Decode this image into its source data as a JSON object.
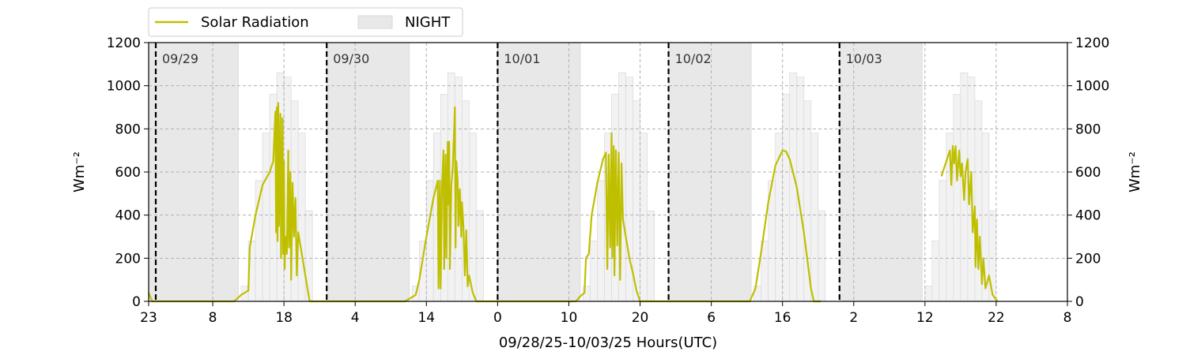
{
  "chart_data": {
    "type": "line",
    "xlabel": "09/28/25-10/03/25  Hours(UTC)",
    "ylabel_left": "Wm⁻²",
    "ylabel_right": "Wm⁻²",
    "ylim": [
      0,
      1200
    ],
    "yticks": [
      0,
      200,
      400,
      600,
      800,
      1000,
      1200
    ],
    "x_unit": "hours since 09/28 00:00 UTC",
    "xlim": [
      23,
      152
    ],
    "xticks": [
      {
        "x": 23,
        "label": "23"
      },
      {
        "x": 32,
        "label": "8"
      },
      {
        "x": 42,
        "label": "18"
      },
      {
        "x": 52,
        "label": "4"
      },
      {
        "x": 62,
        "label": "14"
      },
      {
        "x": 72,
        "label": "0"
      },
      {
        "x": 82,
        "label": "10"
      },
      {
        "x": 92,
        "label": "20"
      },
      {
        "x": 102,
        "label": "6"
      },
      {
        "x": 112,
        "label": "16"
      },
      {
        "x": 122,
        "label": "2"
      },
      {
        "x": 132,
        "label": "12"
      },
      {
        "x": 142,
        "label": "22"
      },
      {
        "x": 152,
        "label": "8"
      }
    ],
    "grid": true,
    "legend": {
      "placement": "top-left, above plot",
      "entries": [
        {
          "label": "Solar Radiation",
          "kind": "line",
          "color": "#bfbf00"
        },
        {
          "label": "NIGHT",
          "kind": "patch",
          "color": "#e8e8e8"
        }
      ]
    },
    "day_markers": [
      {
        "x": 24,
        "label": "09/29"
      },
      {
        "x": 48,
        "label": "09/30"
      },
      {
        "x": 72,
        "label": "10/01"
      },
      {
        "x": 96,
        "label": "10/02"
      },
      {
        "x": 120,
        "label": "10/03"
      }
    ],
    "night_spans": [
      [
        23,
        35.6
      ],
      [
        48,
        59.6
      ],
      [
        72,
        83.6
      ],
      [
        96,
        107.6
      ],
      [
        120,
        131.6
      ]
    ],
    "clear_sky_envelope": [
      {
        "x": 35.6,
        "y": 0
      },
      {
        "x": 36.0,
        "y": 70
      },
      {
        "x": 37.0,
        "y": 280
      },
      {
        "x": 38.0,
        "y": 560
      },
      {
        "x": 39.0,
        "y": 780
      },
      {
        "x": 40.0,
        "y": 960
      },
      {
        "x": 41.0,
        "y": 1060
      },
      {
        "x": 42.0,
        "y": 1040
      },
      {
        "x": 43.0,
        "y": 930
      },
      {
        "x": 44.0,
        "y": 780
      },
      {
        "x": 45.0,
        "y": 420
      },
      {
        "x": 46.0,
        "y": 0
      },
      {
        "x": 59.6,
        "y": 0
      },
      {
        "x": 60.0,
        "y": 70
      },
      {
        "x": 61.0,
        "y": 280
      },
      {
        "x": 62.0,
        "y": 560
      },
      {
        "x": 63.0,
        "y": 780
      },
      {
        "x": 64.0,
        "y": 960
      },
      {
        "x": 65.0,
        "y": 1060
      },
      {
        "x": 66.0,
        "y": 1040
      },
      {
        "x": 67.0,
        "y": 930
      },
      {
        "x": 68.0,
        "y": 780
      },
      {
        "x": 69.0,
        "y": 420
      },
      {
        "x": 70.0,
        "y": 0
      },
      {
        "x": 83.6,
        "y": 0
      },
      {
        "x": 84.0,
        "y": 70
      },
      {
        "x": 85.0,
        "y": 280
      },
      {
        "x": 86.0,
        "y": 560
      },
      {
        "x": 87.0,
        "y": 780
      },
      {
        "x": 88.0,
        "y": 960
      },
      {
        "x": 89.0,
        "y": 1060
      },
      {
        "x": 90.0,
        "y": 1040
      },
      {
        "x": 91.0,
        "y": 930
      },
      {
        "x": 92.0,
        "y": 780
      },
      {
        "x": 93.0,
        "y": 420
      },
      {
        "x": 94.0,
        "y": 0
      },
      {
        "x": 107.6,
        "y": 0
      },
      {
        "x": 108.0,
        "y": 70
      },
      {
        "x": 109.0,
        "y": 280
      },
      {
        "x": 110.0,
        "y": 560
      },
      {
        "x": 111.0,
        "y": 780
      },
      {
        "x": 112.0,
        "y": 960
      },
      {
        "x": 113.0,
        "y": 1060
      },
      {
        "x": 114.0,
        "y": 1040
      },
      {
        "x": 115.0,
        "y": 930
      },
      {
        "x": 116.0,
        "y": 780
      },
      {
        "x": 117.0,
        "y": 420
      },
      {
        "x": 118.0,
        "y": 0
      },
      {
        "x": 131.6,
        "y": 0
      },
      {
        "x": 132.0,
        "y": 70
      },
      {
        "x": 133.0,
        "y": 280
      },
      {
        "x": 134.0,
        "y": 560
      },
      {
        "x": 135.0,
        "y": 780
      },
      {
        "x": 136.0,
        "y": 960
      },
      {
        "x": 137.0,
        "y": 1060
      },
      {
        "x": 138.0,
        "y": 1040
      },
      {
        "x": 139.0,
        "y": 930
      },
      {
        "x": 140.0,
        "y": 780
      },
      {
        "x": 141.0,
        "y": 420
      },
      {
        "x": 142.0,
        "y": 0
      }
    ],
    "series": [
      {
        "name": "Solar Radiation",
        "color": "#bfbf00",
        "segments": [
          [
            {
              "x": 23.0,
              "y": 40
            },
            {
              "x": 23.5,
              "y": 0
            },
            {
              "x": 35.0,
              "y": 0
            },
            {
              "x": 36.0,
              "y": 30
            },
            {
              "x": 37.0,
              "y": 50
            },
            {
              "x": 37.2,
              "y": 250
            },
            {
              "x": 38.0,
              "y": 400
            },
            {
              "x": 39.0,
              "y": 540
            },
            {
              "x": 40.0,
              "y": 600
            },
            {
              "x": 40.5,
              "y": 650
            },
            {
              "x": 40.8,
              "y": 880
            },
            {
              "x": 40.9,
              "y": 320
            },
            {
              "x": 41.0,
              "y": 900
            },
            {
              "x": 41.1,
              "y": 280
            },
            {
              "x": 41.2,
              "y": 920
            },
            {
              "x": 41.3,
              "y": 350
            },
            {
              "x": 41.5,
              "y": 870
            },
            {
              "x": 41.6,
              "y": 200
            },
            {
              "x": 41.8,
              "y": 850
            },
            {
              "x": 41.9,
              "y": 220
            },
            {
              "x": 42.0,
              "y": 650
            },
            {
              "x": 42.1,
              "y": 150
            },
            {
              "x": 42.2,
              "y": 300
            },
            {
              "x": 42.4,
              "y": 220
            },
            {
              "x": 42.6,
              "y": 700
            },
            {
              "x": 42.7,
              "y": 250
            },
            {
              "x": 42.9,
              "y": 600
            },
            {
              "x": 43.0,
              "y": 100
            },
            {
              "x": 43.2,
              "y": 550
            },
            {
              "x": 43.4,
              "y": 300
            },
            {
              "x": 43.6,
              "y": 480
            },
            {
              "x": 43.8,
              "y": 120
            },
            {
              "x": 44.0,
              "y": 320
            },
            {
              "x": 44.5,
              "y": 220
            },
            {
              "x": 45.0,
              "y": 120
            },
            {
              "x": 45.6,
              "y": 0
            }
          ],
          [
            {
              "x": 45.6,
              "y": 0
            },
            {
              "x": 59.0,
              "y": 0
            },
            {
              "x": 60.5,
              "y": 30
            },
            {
              "x": 61.0,
              "y": 100
            },
            {
              "x": 62.0,
              "y": 300
            },
            {
              "x": 63.0,
              "y": 480
            },
            {
              "x": 63.6,
              "y": 560
            },
            {
              "x": 63.7,
              "y": 60
            },
            {
              "x": 63.9,
              "y": 560
            },
            {
              "x": 64.0,
              "y": 60
            },
            {
              "x": 64.2,
              "y": 540
            },
            {
              "x": 64.4,
              "y": 700
            },
            {
              "x": 64.5,
              "y": 150
            },
            {
              "x": 64.7,
              "y": 680
            },
            {
              "x": 64.8,
              "y": 200
            },
            {
              "x": 65.0,
              "y": 740
            },
            {
              "x": 65.1,
              "y": 450
            },
            {
              "x": 65.2,
              "y": 740
            },
            {
              "x": 65.3,
              "y": 150
            },
            {
              "x": 65.5,
              "y": 540
            },
            {
              "x": 65.7,
              "y": 620
            },
            {
              "x": 65.9,
              "y": 800
            },
            {
              "x": 66.0,
              "y": 900
            },
            {
              "x": 66.1,
              "y": 250
            },
            {
              "x": 66.2,
              "y": 650
            },
            {
              "x": 66.4,
              "y": 560
            },
            {
              "x": 66.5,
              "y": 350
            },
            {
              "x": 66.7,
              "y": 520
            },
            {
              "x": 66.9,
              "y": 300
            },
            {
              "x": 67.0,
              "y": 460
            },
            {
              "x": 67.2,
              "y": 350
            },
            {
              "x": 67.4,
              "y": 120
            },
            {
              "x": 67.6,
              "y": 330
            },
            {
              "x": 67.8,
              "y": 70
            },
            {
              "x": 68.0,
              "y": 120
            },
            {
              "x": 68.5,
              "y": 40
            },
            {
              "x": 69.0,
              "y": 0
            }
          ],
          [
            {
              "x": 69.0,
              "y": 0
            },
            {
              "x": 83.0,
              "y": 0
            },
            {
              "x": 83.5,
              "y": 20
            },
            {
              "x": 84.2,
              "y": 40
            },
            {
              "x": 84.4,
              "y": 200
            },
            {
              "x": 84.8,
              "y": 220
            },
            {
              "x": 85.2,
              "y": 400
            },
            {
              "x": 86.0,
              "y": 550
            },
            {
              "x": 86.8,
              "y": 660
            },
            {
              "x": 87.2,
              "y": 690
            },
            {
              "x": 87.4,
              "y": 150
            },
            {
              "x": 87.6,
              "y": 680
            },
            {
              "x": 87.8,
              "y": 250
            },
            {
              "x": 88.0,
              "y": 780
            },
            {
              "x": 88.1,
              "y": 200
            },
            {
              "x": 88.3,
              "y": 720
            },
            {
              "x": 88.4,
              "y": 120
            },
            {
              "x": 88.6,
              "y": 700
            },
            {
              "x": 88.8,
              "y": 260
            },
            {
              "x": 89.0,
              "y": 690
            },
            {
              "x": 89.2,
              "y": 100
            },
            {
              "x": 89.4,
              "y": 640
            },
            {
              "x": 89.6,
              "y": 380
            },
            {
              "x": 90.0,
              "y": 300
            },
            {
              "x": 90.5,
              "y": 200
            },
            {
              "x": 91.0,
              "y": 130
            },
            {
              "x": 91.5,
              "y": 50
            },
            {
              "x": 92.0,
              "y": 0
            }
          ],
          [
            {
              "x": 92.0,
              "y": 0
            },
            {
              "x": 107.4,
              "y": 0
            },
            {
              "x": 108.2,
              "y": 60
            },
            {
              "x": 109.0,
              "y": 230
            },
            {
              "x": 110.0,
              "y": 460
            },
            {
              "x": 111.0,
              "y": 630
            },
            {
              "x": 112.0,
              "y": 700
            },
            {
              "x": 112.5,
              "y": 695
            },
            {
              "x": 113.0,
              "y": 660
            },
            {
              "x": 114.0,
              "y": 530
            },
            {
              "x": 115.0,
              "y": 320
            },
            {
              "x": 116.0,
              "y": 60
            },
            {
              "x": 116.4,
              "y": 0
            },
            {
              "x": 117.4,
              "y": 0
            }
          ],
          [
            {
              "x": 134.3,
              "y": 580
            },
            {
              "x": 135.0,
              "y": 650
            },
            {
              "x": 135.5,
              "y": 700
            },
            {
              "x": 135.7,
              "y": 540
            },
            {
              "x": 135.9,
              "y": 720
            },
            {
              "x": 136.1,
              "y": 640
            },
            {
              "x": 136.3,
              "y": 720
            },
            {
              "x": 136.5,
              "y": 560
            },
            {
              "x": 136.8,
              "y": 700
            },
            {
              "x": 137.0,
              "y": 580
            },
            {
              "x": 137.2,
              "y": 640
            },
            {
              "x": 137.5,
              "y": 470
            },
            {
              "x": 137.7,
              "y": 600
            },
            {
              "x": 138.0,
              "y": 660
            },
            {
              "x": 138.2,
              "y": 450
            },
            {
              "x": 138.5,
              "y": 600
            },
            {
              "x": 138.7,
              "y": 320
            },
            {
              "x": 139.0,
              "y": 440
            },
            {
              "x": 139.1,
              "y": 160
            },
            {
              "x": 139.3,
              "y": 380
            },
            {
              "x": 139.5,
              "y": 150
            },
            {
              "x": 139.7,
              "y": 300
            },
            {
              "x": 140.0,
              "y": 80
            },
            {
              "x": 140.2,
              "y": 200
            },
            {
              "x": 140.5,
              "y": 60
            },
            {
              "x": 141.0,
              "y": 120
            },
            {
              "x": 141.5,
              "y": 30
            },
            {
              "x": 142.2,
              "y": 0
            }
          ]
        ]
      }
    ]
  }
}
